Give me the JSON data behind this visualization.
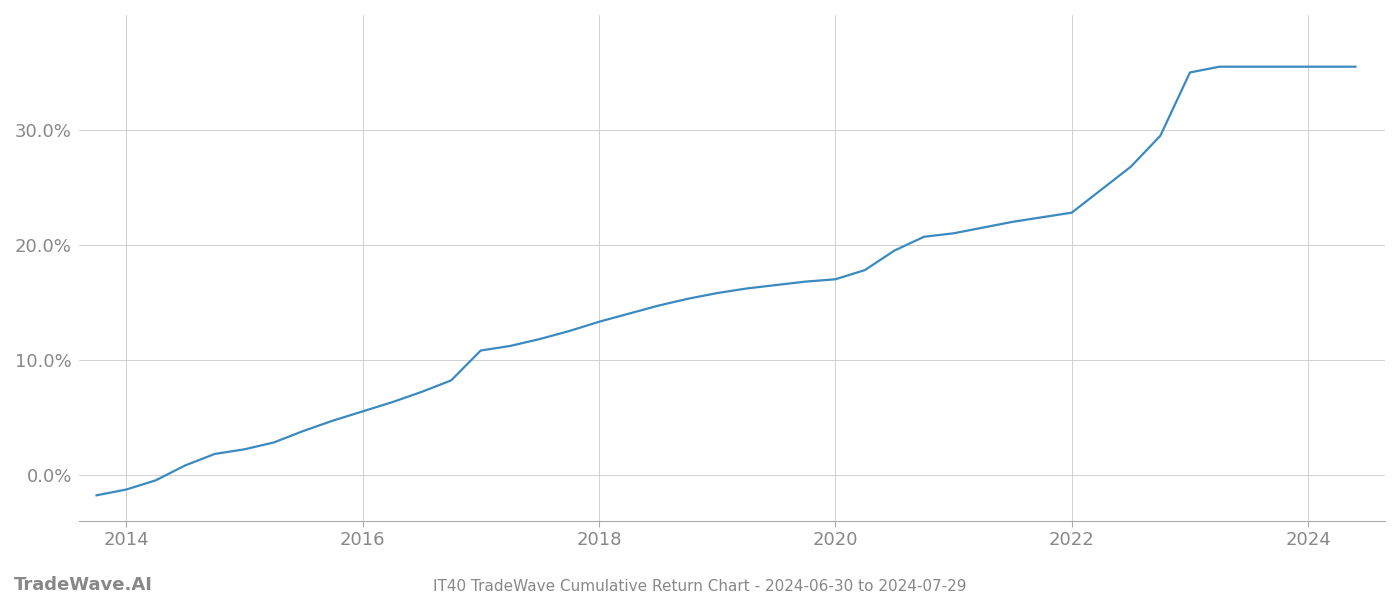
{
  "title": "IT40 TradeWave Cumulative Return Chart - 2024-06-30 to 2024-07-29",
  "watermark": "TradeWave.AI",
  "line_color": "#3a8abf",
  "background_color": "#ffffff",
  "grid_color": "#d0d0d0",
  "years": [
    2013.75,
    2014.0,
    2014.25,
    2014.5,
    2014.75,
    2015.0,
    2015.25,
    2015.5,
    2015.75,
    2016.0,
    2016.25,
    2016.5,
    2016.75,
    2017.0,
    2017.25,
    2017.5,
    2017.75,
    2018.0,
    2018.25,
    2018.5,
    2018.75,
    2019.0,
    2019.25,
    2019.5,
    2019.75,
    2020.0,
    2020.25,
    2020.5,
    2020.75,
    2021.0,
    2021.25,
    2021.5,
    2021.75,
    2022.0,
    2022.25,
    2022.5,
    2022.75,
    2023.0,
    2023.25,
    2023.5,
    2024.0,
    2024.4
  ],
  "values": [
    -0.018,
    -0.013,
    -0.005,
    0.008,
    0.018,
    0.022,
    0.028,
    0.038,
    0.047,
    0.055,
    0.063,
    0.072,
    0.082,
    0.108,
    0.112,
    0.118,
    0.125,
    0.133,
    0.14,
    0.147,
    0.153,
    0.158,
    0.162,
    0.165,
    0.168,
    0.17,
    0.178,
    0.195,
    0.207,
    0.21,
    0.215,
    0.22,
    0.224,
    0.228,
    0.248,
    0.268,
    0.295,
    0.35,
    0.355,
    0.355,
    0.355,
    0.355
  ],
  "xlim": [
    2013.6,
    2024.65
  ],
  "ylim": [
    -0.04,
    0.4
  ],
  "yticks": [
    0.0,
    0.1,
    0.2,
    0.3
  ],
  "xticks": [
    2014,
    2016,
    2018,
    2020,
    2022,
    2024
  ],
  "tick_color": "#888888",
  "tick_fontsize": 13,
  "title_fontsize": 11,
  "watermark_fontsize": 13,
  "linewidth": 1.6
}
